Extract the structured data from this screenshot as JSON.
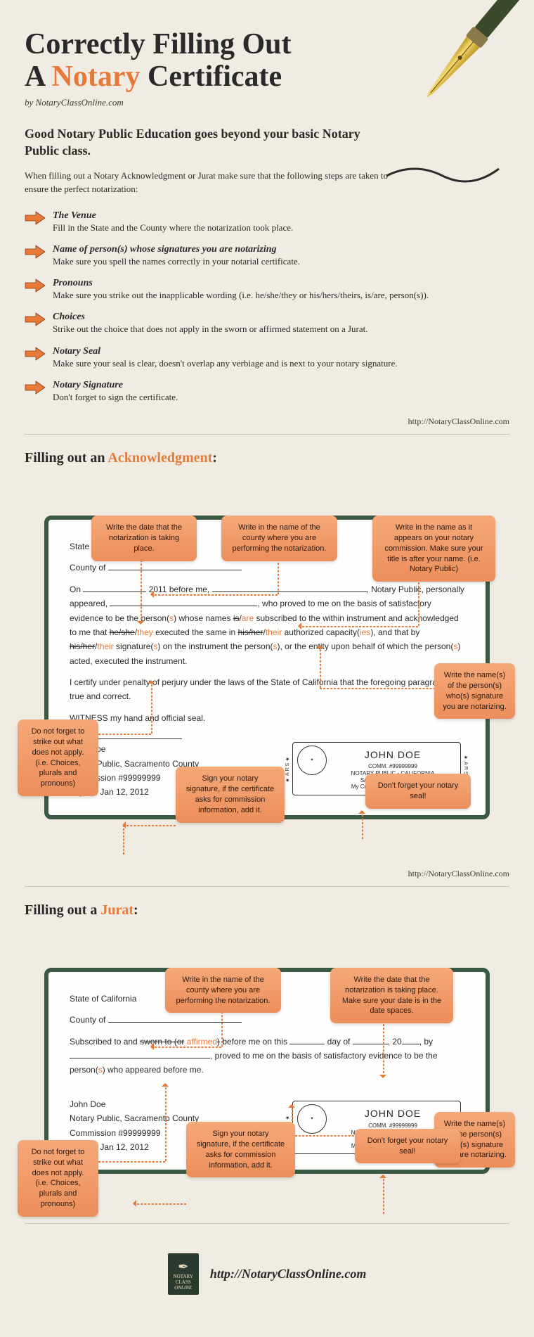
{
  "title_line1": "Correctly Filling Out",
  "title_line2_a": "A ",
  "title_line2_accent": "Notary",
  "title_line2_b": " Certificate",
  "byline": "by NotaryClassOnline.com",
  "subhead": "Good Notary Public Education goes beyond your basic Notary Public class.",
  "intro": "When filling out a Notary Acknowledgment or Jurat make sure that the following steps are taken to ensure the perfect notarization:",
  "steps": [
    {
      "title": "The Venue",
      "desc": "Fill in the State and the County where the notarization took place."
    },
    {
      "title": "Name of person(s) whose signatures you are notarizing",
      "desc": "Make sure you spell the names correctly in your notarial certificate."
    },
    {
      "title": "Pronouns",
      "desc": "Make sure you strike out the inapplicable wording (i.e. he/she/they or his/hers/theirs, is/are, person(s))."
    },
    {
      "title": "Choices",
      "desc": "Strike out the choice that does not apply in the sworn or affirmed statement on a Jurat."
    },
    {
      "title": "Notary Seal",
      "desc": "Make sure your seal is clear, doesn't overlap any verbiage and is next to your notary signature."
    },
    {
      "title": "Notary Signature",
      "desc": "Don't forget to sign the certificate."
    }
  ],
  "url": "http://NotaryClassOnline.com",
  "ack": {
    "title_a": "Filling out an ",
    "title_accent": "Acknowledgment",
    "title_b": ":",
    "state_label": "State of California",
    "county_label": "County of ",
    "body_year": "2011",
    "cert_text": "I certify under penalty of perjury under the laws of the State of California that the foregoing paragraph is true and correct.",
    "witness_text": "WITNESS my hand and official seal.",
    "sig_name": "John Doe",
    "sig_l1": "Notary Public, Sacramento County",
    "sig_l2": "Commission #99999999",
    "sig_l3": "Expires Jan 12, 2012",
    "seal_name": "JOHN DOE",
    "seal_l1": "COMM. #99999999",
    "seal_l2": "NOTARY PUBLIC - CALIFORNIA",
    "seal_l3": "SACRAMENTO COUNTY",
    "seal_l4": "My Comm. Expires Jan. 12, 2012",
    "callouts": {
      "date": "Write the date that the notarization is taking place.",
      "county": "Write in the name of the county where you are performing the notarization.",
      "name": "Write in the name as it appears on your notary commission. Make sure your title is after your name. (i.e. Notary Public)",
      "person": "Write the name(s) of the person(s) who(s) signature you are notarizing.",
      "strike": "Do not forget to strike out what does not apply. (i.e. Choices, plurals and pronouns)",
      "sign": "Sign your notary signature, if the certificate asks for commission information, add it.",
      "seal": "Don't forget your notary seal!"
    }
  },
  "jurat": {
    "title_a": "Filling out a ",
    "title_accent": "Jurat",
    "title_b": ":",
    "state_label": "State of California",
    "county_label": "County of ",
    "sig_name": "John Doe",
    "sig_l1": "Notary Public, Sacramento County",
    "sig_l2": "Commission #99999999",
    "sig_l3": "Expires Jan 12, 2012",
    "seal_name": "JOHN DOE",
    "seal_l1": "COMM. #99999999",
    "seal_l2": "NOTARY PUBLIC - CALIFORNIA",
    "seal_l3": "SACRAMENTO COUNTY",
    "seal_l4": "My Comm. Expires Jan. 12, 2012",
    "callouts": {
      "county": "Write in the name of the county where you are performing the notarization.",
      "date": "Write the date that the notarization is taking place. Make sure your date is in the date spaces.",
      "strike": "Do not forget to strike out what does not apply. (i.e. Choices, plurals and pronouns)",
      "person": "Write the name(s) of the person(s) who(s) signature you are notarizing.",
      "sign": "Sign your notary signature, if the certificate asks for commission information, add it.",
      "seal": "Don't forget your notary seal!"
    }
  },
  "footer_url": "http://NotaryClassOnline.com",
  "colors": {
    "accent": "#e67a3a",
    "bg": "#f0ece3",
    "card_border": "#3a5a43",
    "callout_top": "#f5a878",
    "callout_bot": "#ec8e5b"
  }
}
